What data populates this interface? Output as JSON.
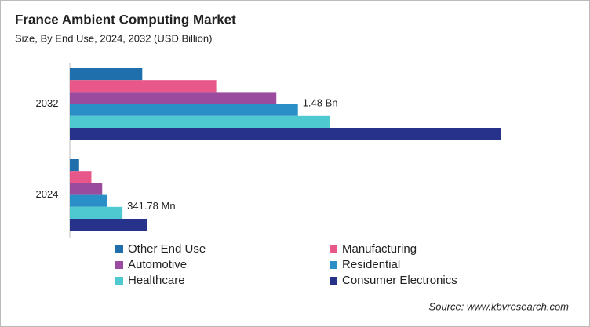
{
  "chart_data": {
    "type": "bar",
    "orientation": "horizontal",
    "title": "France Ambient Computing Market",
    "subtitle": "Size, By End Use, 2024, 2032 (USD Billion)",
    "categories": [
      "2032",
      "2024"
    ],
    "series": [
      {
        "name": "Other End Use",
        "color": "#1f6fad",
        "values": [
          0.47,
          0.06
        ]
      },
      {
        "name": "Manufacturing",
        "color": "#e8578a",
        "values": [
          0.95,
          0.14
        ]
      },
      {
        "name": "Automotive",
        "color": "#9b4b9e",
        "values": [
          1.34,
          0.21
        ]
      },
      {
        "name": "Residential",
        "color": "#2a8fc7",
        "values": [
          1.48,
          0.24
        ],
        "value_labels": [
          "1.48 Bn",
          null
        ]
      },
      {
        "name": "Healthcare",
        "color": "#4fc9d0",
        "values": [
          1.69,
          0.34178
        ],
        "value_labels": [
          null,
          "341.78 Mn"
        ]
      },
      {
        "name": "Consumer Electronics",
        "color": "#27338a",
        "values": [
          2.8,
          0.5
        ]
      }
    ],
    "source": "Source: www.kbvresearch.com"
  }
}
